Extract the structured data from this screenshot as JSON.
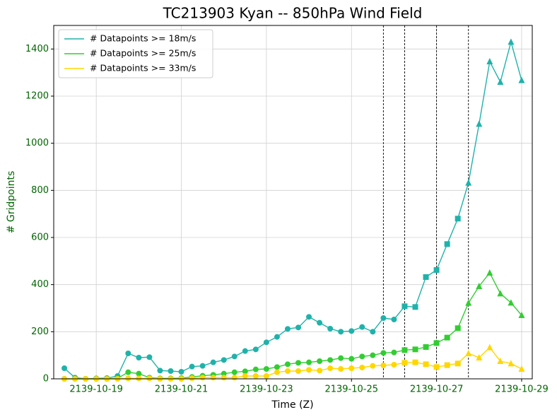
{
  "chart_data": {
    "type": "line",
    "title": "TC213903 Kyan -- 850hPa Wind Field",
    "xlabel": "Time (Z)",
    "ylabel": "# Gridpoints",
    "x": [
      "2139-10-18 06:00",
      "2139-10-18 12:00",
      "2139-10-18 18:00",
      "2139-10-19 00:00",
      "2139-10-19 06:00",
      "2139-10-19 12:00",
      "2139-10-19 18:00",
      "2139-10-20 00:00",
      "2139-10-20 06:00",
      "2139-10-20 12:00",
      "2139-10-20 18:00",
      "2139-10-21 00:00",
      "2139-10-21 06:00",
      "2139-10-21 12:00",
      "2139-10-21 18:00",
      "2139-10-22 00:00",
      "2139-10-22 06:00",
      "2139-10-22 12:00",
      "2139-10-22 18:00",
      "2139-10-23 00:00",
      "2139-10-23 06:00",
      "2139-10-23 12:00",
      "2139-10-23 18:00",
      "2139-10-24 00:00",
      "2139-10-24 06:00",
      "2139-10-24 12:00",
      "2139-10-24 18:00",
      "2139-10-25 00:00",
      "2139-10-25 06:00",
      "2139-10-25 12:00",
      "2139-10-25 18:00",
      "2139-10-26 00:00",
      "2139-10-26 06:00",
      "2139-10-26 12:00",
      "2139-10-26 18:00",
      "2139-10-27 00:00",
      "2139-10-27 06:00",
      "2139-10-27 12:00",
      "2139-10-27 18:00",
      "2139-10-28 00:00",
      "2139-10-28 06:00",
      "2139-10-28 12:00",
      "2139-10-28 18:00",
      "2139-10-29 00:00"
    ],
    "series": [
      {
        "name": "# Datapoints >= 18m/s",
        "color": "#20b2aa",
        "values": [
          45,
          5,
          0,
          2,
          3,
          12,
          108,
          90,
          92,
          35,
          33,
          30,
          52,
          55,
          70,
          80,
          95,
          118,
          125,
          155,
          178,
          212,
          218,
          263,
          238,
          213,
          200,
          203,
          220,
          200,
          258,
          252,
          308,
          305,
          432,
          462,
          572,
          680,
          832,
          1082,
          1347,
          1260,
          1430,
          1267
        ]
      },
      {
        "name": "# Datapoints >= 25m/s",
        "color": "#32cd32",
        "values": [
          0,
          0,
          0,
          0,
          0,
          2,
          28,
          22,
          5,
          2,
          2,
          3,
          8,
          13,
          17,
          22,
          28,
          32,
          40,
          42,
          50,
          62,
          68,
          70,
          75,
          80,
          88,
          85,
          95,
          100,
          110,
          112,
          122,
          125,
          135,
          152,
          175,
          215,
          322,
          393,
          450,
          362,
          323,
          270
        ]
      },
      {
        "name": "# Datapoints >= 33m/s",
        "color": "#ffd700",
        "values": [
          0,
          0,
          0,
          0,
          0,
          0,
          2,
          2,
          2,
          0,
          0,
          0,
          3,
          5,
          5,
          5,
          5,
          12,
          12,
          12,
          28,
          33,
          33,
          38,
          35,
          45,
          42,
          45,
          48,
          55,
          57,
          60,
          68,
          70,
          62,
          50,
          58,
          65,
          108,
          90,
          133,
          75,
          65,
          42
        ]
      }
    ],
    "vlines": [
      "2139-10-25 18:00",
      "2139-10-26 06:00",
      "2139-10-27 00:00",
      "2139-10-27 18:00"
    ],
    "markers": [
      "circle",
      "circle",
      "square",
      "square",
      "triangle"
    ],
    "xlim": [
      "2139-10-18 00:00",
      "2139-10-29 06:00"
    ],
    "xticks": [
      "2139-10-19",
      "2139-10-21",
      "2139-10-23",
      "2139-10-25",
      "2139-10-27",
      "2139-10-29"
    ],
    "ylim": [
      0,
      1500
    ],
    "yticks": [
      0,
      200,
      400,
      600,
      800,
      1000,
      1200,
      1400
    ],
    "grid": true,
    "legend": "upper left"
  }
}
